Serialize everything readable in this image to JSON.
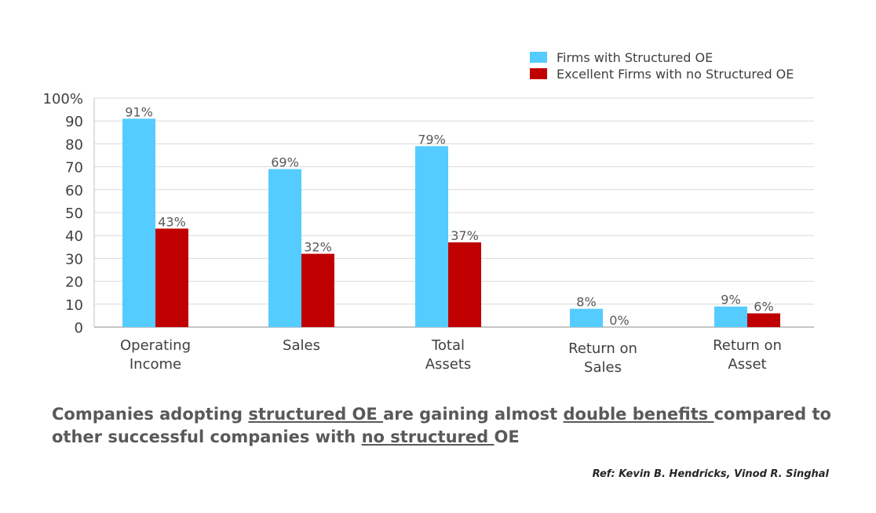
{
  "chart_data": {
    "type": "bar",
    "categories": [
      "Operating\nIncome",
      "Sales",
      "Total\nAssets",
      "Return on\nSales",
      "Return on\nAsset"
    ],
    "series": [
      {
        "name": "Firms with Structured OE",
        "color": "#55CCFF",
        "values": [
          91,
          69,
          79,
          8,
          9
        ],
        "labels": [
          "91%",
          "69%",
          "79%",
          "8%",
          "9%"
        ]
      },
      {
        "name": "Excellent Firms with no Structured OE",
        "color": "#C00000",
        "values": [
          43,
          32,
          37,
          0,
          6
        ],
        "labels": [
          "43%",
          "32%",
          "37%",
          "0%",
          "6%"
        ]
      }
    ],
    "ylim": [
      0,
      100
    ],
    "yticks": [
      0,
      10,
      20,
      30,
      40,
      50,
      60,
      70,
      80,
      90,
      100
    ],
    "ytick_labels": [
      "0",
      "10",
      "20",
      "30",
      "40",
      "50",
      "60",
      "70",
      "80",
      "90",
      "100%"
    ],
    "grid": true,
    "legend": "top-right",
    "title": "",
    "xlabel": "",
    "ylabel": ""
  },
  "caption": {
    "p1": "Companies adopting ",
    "u1": "structured OE ",
    "p2": "are gaining almost ",
    "u2": "double benefits ",
    "p3": "compared to other successful companies with ",
    "u3": "no structured ",
    "p4": "OE"
  },
  "reference": "Ref: Kevin B. Hendricks, Vinod R. Singhal"
}
